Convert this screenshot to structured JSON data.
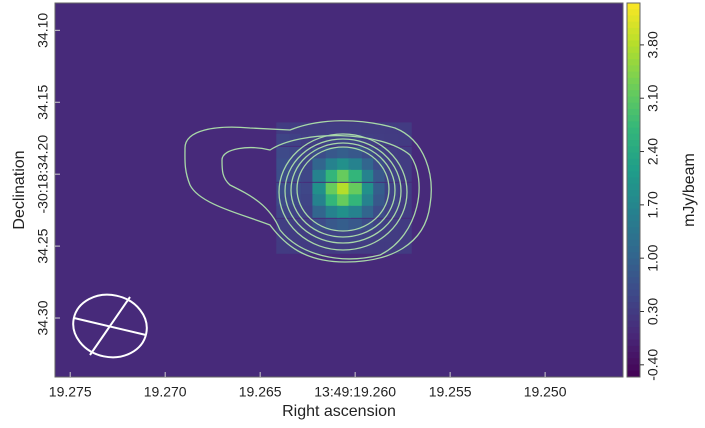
{
  "chart_data": {
    "type": "heatmap",
    "x_label": "Right ascension",
    "y_label": "Declination",
    "colorbar_label": "mJy/beam",
    "colormap": "viridis",
    "background_color": "#472a7a",
    "xlim": [
      19.2758,
      19.2459
    ],
    "ylim": [
      34.341,
      34.081
    ],
    "zlim": [
      -0.56,
      4.35
    ],
    "xticks": [
      {
        "value": 19.275,
        "label": "19.275"
      },
      {
        "value": 19.27,
        "label": "19.270"
      },
      {
        "value": 19.265,
        "label": "19.265"
      },
      {
        "value": 19.26,
        "label": "13:49:19.260"
      },
      {
        "value": 19.255,
        "label": "19.255"
      },
      {
        "value": 19.25,
        "label": "19.250"
      }
    ],
    "yticks": [
      {
        "value": 34.1,
        "label": "34.10"
      },
      {
        "value": 34.15,
        "label": "34.15"
      },
      {
        "value": 34.2,
        "label": "-30:18:34.20"
      },
      {
        "value": 34.25,
        "label": "34.25"
      },
      {
        "value": 34.3,
        "label": "34.30"
      }
    ],
    "zticks": [
      {
        "value": -0.4,
        "label": "-0.40"
      },
      {
        "value": 0.3,
        "label": "0.30"
      },
      {
        "value": 1.0,
        "label": "1.00"
      },
      {
        "value": 1.7,
        "label": "1.70"
      },
      {
        "value": 2.4,
        "label": "2.40"
      },
      {
        "value": 3.1,
        "label": "3.10"
      },
      {
        "value": 3.8,
        "label": "3.80"
      }
    ],
    "x": [
      19.2638,
      19.2631,
      19.2625,
      19.2619,
      19.2612,
      19.2606,
      19.26,
      19.2593,
      19.2587,
      19.2581,
      19.2574
    ],
    "y": [
      34.168,
      34.176,
      34.185,
      34.193,
      34.201,
      34.21,
      34.218,
      34.226,
      34.235,
      34.243,
      34.251
    ],
    "z": [
      [
        0.3,
        0.3,
        0.31,
        0.32,
        0.33,
        0.33,
        0.33,
        0.32,
        0.31,
        0.3,
        0.3
      ],
      [
        0.45,
        0.4,
        0.33,
        0.37,
        0.43,
        0.45,
        0.43,
        0.37,
        0.33,
        0.31,
        0.3
      ],
      [
        0.55,
        0.5,
        0.42,
        0.58,
        0.8,
        0.9,
        0.8,
        0.58,
        0.4,
        0.33,
        0.3
      ],
      [
        0.6,
        0.55,
        0.45,
        1.04,
        1.62,
        1.9,
        1.62,
        1.04,
        0.58,
        0.37,
        0.31
      ],
      [
        0.62,
        0.58,
        0.48,
        1.62,
        2.67,
        3.18,
        2.67,
        1.62,
        0.8,
        0.43,
        0.32
      ],
      [
        0.62,
        0.58,
        0.5,
        1.9,
        3.18,
        3.8,
        3.18,
        1.9,
        0.9,
        0.45,
        0.33
      ],
      [
        0.55,
        0.52,
        0.45,
        1.62,
        2.67,
        3.18,
        2.67,
        1.62,
        0.8,
        0.43,
        0.32
      ],
      [
        0.45,
        0.42,
        0.4,
        1.04,
        1.62,
        1.9,
        1.62,
        1.04,
        0.58,
        0.37,
        0.31
      ],
      [
        0.35,
        0.34,
        0.33,
        0.58,
        0.8,
        0.9,
        0.8,
        0.58,
        0.4,
        0.33,
        0.3
      ],
      [
        0.31,
        0.31,
        0.32,
        0.37,
        0.43,
        0.45,
        0.43,
        0.37,
        0.33,
        0.31,
        0.3
      ],
      [
        0.3,
        0.3,
        0.3,
        0.31,
        0.32,
        0.33,
        0.32,
        0.31,
        0.3,
        0.3,
        0.3
      ]
    ]
  }
}
